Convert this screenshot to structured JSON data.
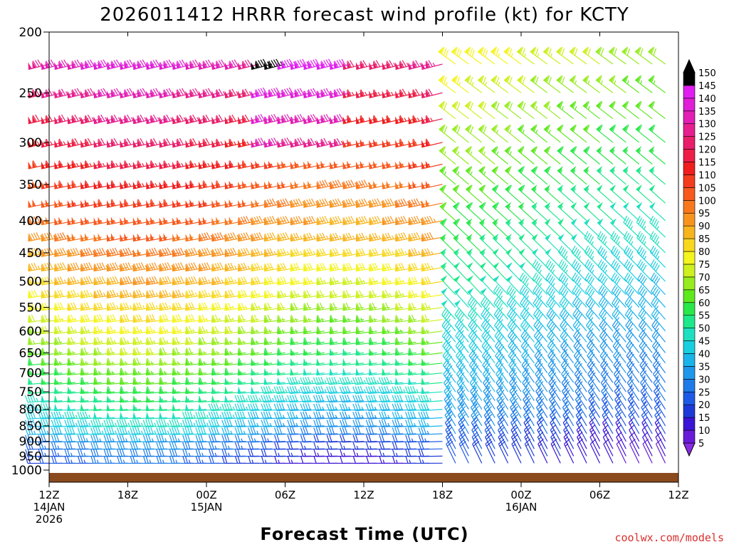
{
  "chart_data": {
    "type": "wind barb time-height",
    "title": "2026011412 HRRR forecast wind profile (kt) for KCTY",
    "xlabel": "Forecast Time (UTC)",
    "ylabel": "",
    "pressure_levels_hpa": [
      200,
      250,
      300,
      350,
      400,
      450,
      500,
      550,
      600,
      650,
      700,
      750,
      800,
      850,
      900,
      950,
      1000
    ],
    "y_ticks": [
      "200",
      "250",
      "300",
      "350",
      "400",
      "450",
      "500",
      "550",
      "600",
      "650",
      "700",
      "750",
      "800",
      "850",
      "900",
      "950",
      "1000"
    ],
    "barb_rows_hpa": [
      225,
      250,
      275,
      300,
      325,
      350,
      375,
      400,
      425,
      450,
      475,
      500,
      525,
      550,
      575,
      600,
      625,
      650,
      675,
      700,
      725,
      750,
      775,
      800,
      825,
      850,
      875,
      900,
      925,
      950,
      975
    ],
    "x_ticks": [
      {
        "hour": 0,
        "lines": [
          "12Z",
          "14JAN",
          "2026"
        ]
      },
      {
        "hour": 6,
        "lines": [
          "18Z"
        ]
      },
      {
        "hour": 12,
        "lines": [
          "00Z",
          "15JAN"
        ]
      },
      {
        "hour": 18,
        "lines": [
          "06Z"
        ]
      },
      {
        "hour": 24,
        "lines": [
          "12Z"
        ]
      },
      {
        "hour": 30,
        "lines": [
          "18Z"
        ]
      },
      {
        "hour": 36,
        "lines": [
          "00Z",
          "16JAN"
        ]
      },
      {
        "hour": 42,
        "lines": [
          "06Z"
        ]
      },
      {
        "hour": 48,
        "lines": [
          "12Z"
        ]
      }
    ],
    "xlim_hours": [
      0,
      48
    ],
    "ylim_hpa": [
      200,
      1030
    ],
    "y_scale": "log",
    "colorbar": {
      "levels": [
        5,
        10,
        15,
        20,
        25,
        30,
        35,
        40,
        45,
        50,
        55,
        60,
        65,
        70,
        75,
        80,
        85,
        90,
        95,
        100,
        105,
        110,
        115,
        120,
        125,
        130,
        135,
        140,
        145,
        150
      ],
      "colors": [
        "#8a2be2",
        "#6a1bd8",
        "#3a14d6",
        "#1e3ad6",
        "#1e5ae6",
        "#1e7ae8",
        "#1e96ea",
        "#1ab4ea",
        "#18cfe0",
        "#1ee0c0",
        "#1ee88a",
        "#2ae84a",
        "#5ee81e",
        "#96ec1e",
        "#cdf01e",
        "#f4f41e",
        "#f8d81e",
        "#f8b41e",
        "#f8941e",
        "#f8781e",
        "#f85a1e",
        "#f43c1e",
        "#f01e1e",
        "#ee1e46",
        "#e81e6a",
        "#e61e8e",
        "#e21eb4",
        "#e01ed6",
        "#e01ef0",
        "#000000"
      ],
      "over_color": "#000000",
      "under_color": "#8a2be2"
    },
    "surface_color": "#8b4a1e",
    "grid": false,
    "legend_position": "right colorbar"
  },
  "watermark": "coolwx.com/models"
}
